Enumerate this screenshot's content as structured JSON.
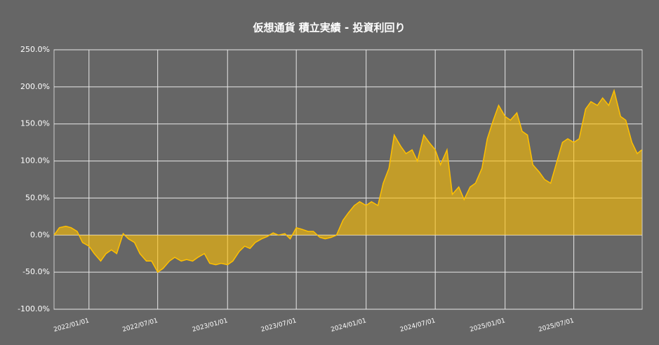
{
  "chart_data": {
    "type": "area",
    "title": "仮想通貨 積立実績 - 投資利回り",
    "x": [
      "2021/10/01",
      "2021/10/15",
      "2021/11/01",
      "2021/11/15",
      "2021/12/01",
      "2021/12/15",
      "2022/01/01",
      "2022/01/15",
      "2022/02/01",
      "2022/02/15",
      "2022/03/01",
      "2022/03/15",
      "2022/04/01",
      "2022/04/15",
      "2022/05/01",
      "2022/05/15",
      "2022/06/01",
      "2022/06/15",
      "2022/07/01",
      "2022/07/15",
      "2022/08/01",
      "2022/08/15",
      "2022/09/01",
      "2022/09/15",
      "2022/10/01",
      "2022/10/15",
      "2022/11/01",
      "2022/11/15",
      "2022/12/01",
      "2022/12/15",
      "2023/01/01",
      "2023/01/15",
      "2023/02/01",
      "2023/02/15",
      "2023/03/01",
      "2023/03/15",
      "2023/04/01",
      "2023/04/15",
      "2023/05/01",
      "2023/05/15",
      "2023/06/01",
      "2023/06/15",
      "2023/07/01",
      "2023/07/15",
      "2023/08/01",
      "2023/08/15",
      "2023/09/01",
      "2023/09/15",
      "2023/10/01",
      "2023/10/15",
      "2023/11/01",
      "2023/11/15",
      "2023/12/01",
      "2023/12/15",
      "2024/01/01",
      "2024/01/15",
      "2024/02/01",
      "2024/02/15",
      "2024/03/01",
      "2024/03/15",
      "2024/04/01",
      "2024/04/15",
      "2024/05/01",
      "2024/05/15",
      "2024/06/01",
      "2024/06/15",
      "2024/07/01",
      "2024/07/15",
      "2024/08/01",
      "2024/08/15",
      "2024/09/01",
      "2024/09/15",
      "2024/10/01",
      "2024/10/15",
      "2024/11/01",
      "2024/11/15",
      "2024/12/01",
      "2024/12/15",
      "2025/01/01",
      "2025/01/15",
      "2025/02/01",
      "2025/02/15",
      "2025/03/01",
      "2025/03/15",
      "2025/04/01",
      "2025/04/15",
      "2025/05/01",
      "2025/05/15",
      "2025/06/01",
      "2025/06/15",
      "2025/07/01",
      "2025/07/15",
      "2025/08/01",
      "2025/08/15",
      "2025/09/01",
      "2025/09/15",
      "2025/10/01",
      "2025/10/15",
      "2025/11/01",
      "2025/11/15",
      "2025/12/01",
      "2025/12/15",
      "2025/12/27"
    ],
    "series": [
      {
        "color": "#ffc000",
        "values": [
          0,
          10,
          12,
          10,
          5,
          -10,
          -15,
          -25,
          -35,
          -25,
          -20,
          -25,
          2,
          -5,
          -10,
          -25,
          -35,
          -35,
          -50,
          -45,
          -35,
          -30,
          -35,
          -33,
          -35,
          -30,
          -25,
          -38,
          -40,
          -38,
          -40,
          -35,
          -22,
          -15,
          -18,
          -10,
          -5,
          -2,
          3,
          0,
          2,
          -5,
          10,
          8,
          5,
          5,
          -3,
          -5,
          -3,
          0,
          20,
          30,
          40,
          45,
          40,
          45,
          40,
          70,
          90,
          135,
          120,
          110,
          115,
          100,
          135,
          125,
          115,
          95,
          115,
          55,
          65,
          48,
          65,
          70,
          90,
          130,
          155,
          175,
          160,
          155,
          165,
          140,
          135,
          95,
          85,
          75,
          70,
          95,
          125,
          130,
          125,
          130,
          170,
          180,
          175,
          185,
          175,
          195,
          160,
          155,
          125,
          110,
          115
        ]
      }
    ],
    "xlim": [
      "2021/10/01",
      "2025/12/28"
    ],
    "xticks": [
      "2022/01/01",
      "2022/07/01",
      "2023/01/01",
      "2023/07/01",
      "2024/01/01",
      "2024/07/01",
      "2025/01/01",
      "2025/07/01"
    ],
    "ylim": [
      -100,
      250
    ],
    "yticks": [
      {
        "value": -100,
        "label": "-100.0%"
      },
      {
        "value": -50,
        "label": "-50.0%"
      },
      {
        "value": 0,
        "label": "0.0%"
      },
      {
        "value": 50,
        "label": "50.0%"
      },
      {
        "value": 100,
        "label": "100.0%"
      },
      {
        "value": 150,
        "label": "150.0%"
      },
      {
        "value": 200,
        "label": "200.0%"
      },
      {
        "value": 250,
        "label": "250.0%"
      }
    ],
    "grid": true
  }
}
